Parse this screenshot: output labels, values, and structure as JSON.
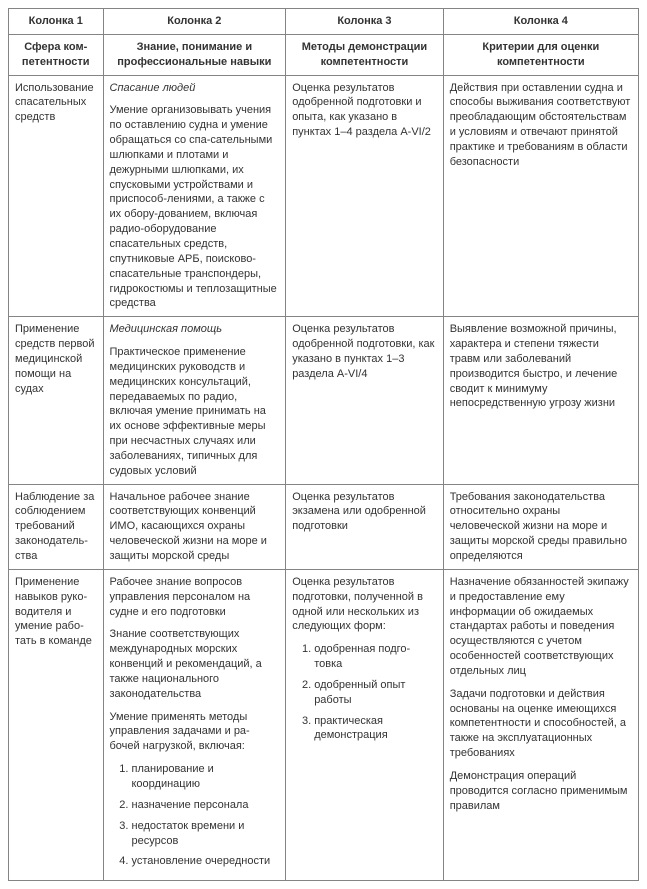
{
  "headers": {
    "top": [
      "Колонка 1",
      "Колонка 2",
      "Колонка 3",
      "Колонка 4"
    ],
    "sub": [
      "Сфера ком-петентности",
      "Знание, понимание и профессиональные навыки",
      "Методы демонстрации компетентности",
      "Критерии для оценки компетентности"
    ]
  },
  "rows": {
    "r1": {
      "c1": "Использование спасательных средств",
      "c2_title": "Спасание людей",
      "c2_body": "Умение организовывать учения по оставлению судна и умение обращаться со спа-сательными шлюпками и плотами и дежурными шлюпками, их спусковыми устройствами и приспособ-лениями, а также с их обору-дованием, включая радио-оборудование спасательных средств, спутниковые АРБ, поисково-спасательные транспондеры, гидрокостюмы и теплозащитные средства",
      "c3": "Оценка результатов одобренной подготовки и опыта, как указано в пунктах 1–4 раздела A-VI/2",
      "c4": "Действия при оставлении судна и способы выживания соответствуют преобладающим обстоятельствам и условиям и отвечают принятой практике и требованиям в области безопасности"
    },
    "r2": {
      "c1": "Применение средств первой медицинской помощи на судах",
      "c2_title": "Медицинская помощь",
      "c2_body": "Практическое применение медицинских руководств и медицинских консультаций, передаваемых по радио, включая умение принимать на их основе эффективные меры при несчастных случаях или заболеваниях, типичных для судовых условий",
      "c3": "Оценка результатов одобренной подготовки, как указано в пунктах 1–3 раздела A-VI/4",
      "c4": "Выявление возможной причины, характера и степени тяжести травм или заболеваний производится быстро, и лечение сводит к минимуму непосредственную угрозу жизни"
    },
    "r3": {
      "c1": "Наблюдение за соблюдением требований законодатель-ства",
      "c2": "Начальное рабочее знание соответствующих конвенций ИМО, касающихся охраны человеческой жизни на море и защиты морской среды",
      "c3": "Оценка результатов экзамена или одобренной подготовки",
      "c4": "Требования законодательства относительно охраны человеческой жизни на море и защиты морской среды правильно определяются"
    },
    "r4": {
      "c1": "Применение навыков руко-водителя и умение рабо-тать в команде",
      "c2_p1": "Рабочее знание вопросов управления персоналом на судне и его подготовки",
      "c2_p2": "Знание соответствующих международных морских конвенций и рекомендаций, а также национального законодательства",
      "c2_p3": "Умение применять методы управления задачами и ра-бочей нагрузкой, включая:",
      "c2_list": [
        "планирование и координацию",
        "назначение персонала",
        "недостаток времени и ресурсов",
        "установление очередности"
      ],
      "c3_intro": "Оценка результатов подготовки, полученной в одной или нескольких из следующих форм:",
      "c3_list": [
        "одобренная подго-товка",
        "одобренный опыт работы",
        "практическая демонстрация"
      ],
      "c4_p1": "Назначение обязанностей экипажу и предоставление ему информации об ожидаемых стандартах работы и поведения осуществляются с учетом особенностей соответствующих отдельных лиц",
      "c4_p2": "Задачи подготовки и действия основаны на оценке имеющихся компетентности и способностей, а также на эксплуатационных требованиях",
      "c4_p3": "Демонстрация операций проводится согласно применимым правилам"
    }
  }
}
